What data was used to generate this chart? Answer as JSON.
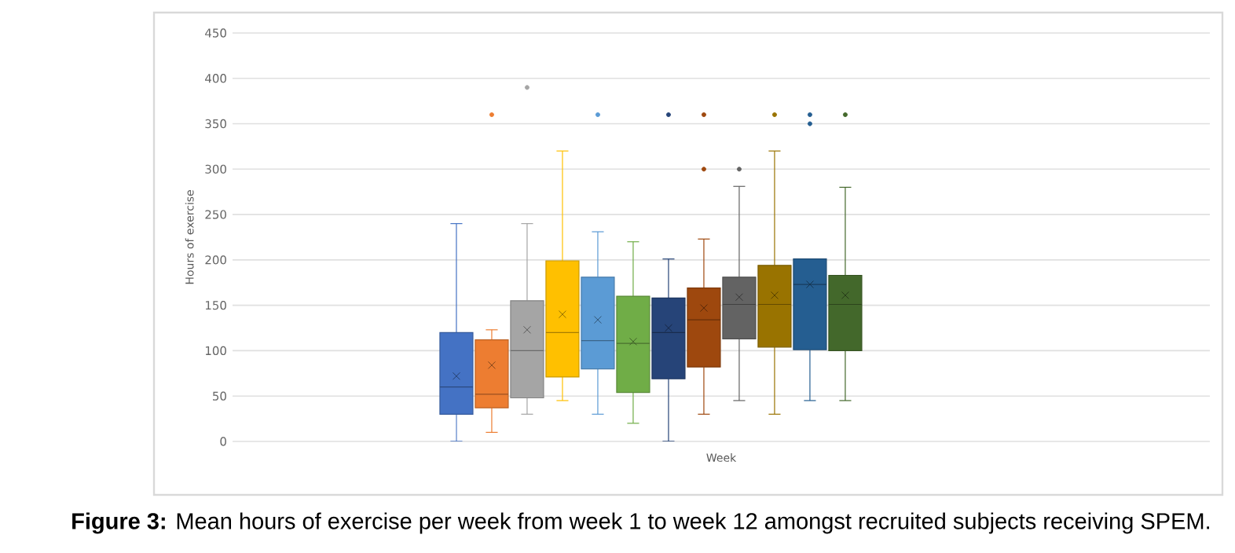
{
  "chart_data": {
    "type": "box",
    "categories": [
      null
    ],
    "xlabel": "Week",
    "ylabel": "Hours of exercise",
    "ylim": [
      0,
      450
    ],
    "yticks": [
      0,
      50,
      100,
      150,
      200,
      250,
      300,
      350,
      400,
      450
    ],
    "grid": "y",
    "annotations": [
      "**Figure 3:** Mean hours of exercise per week from week 1 to week 12 amongst recruited subjects receiving SPEM."
    ],
    "series": [
      {
        "color": "#4472c4",
        "boxes": [
          {
            "low": 0,
            "q1": 30,
            "median": 60,
            "q3": 120,
            "high": 240,
            "mean": 72
          }
        ]
      },
      {
        "color": "#ed7d31",
        "boxes": [
          {
            "low": 10,
            "q1": 37,
            "median": 52,
            "q3": 112,
            "high": 123,
            "mean": 84,
            "outliers": [
              360
            ]
          }
        ]
      },
      {
        "color": "#a5a5a5",
        "boxes": [
          {
            "low": 30,
            "q1": 48,
            "median": 100,
            "q3": 155,
            "high": 240,
            "mean": 123,
            "outliers": [
              390
            ]
          }
        ]
      },
      {
        "color": "#ffc000",
        "boxes": [
          {
            "low": 45,
            "q1": 71,
            "median": 120,
            "q3": 199,
            "high": 320,
            "mean": 140
          }
        ]
      },
      {
        "color": "#5b9bd5",
        "boxes": [
          {
            "low": 30,
            "q1": 80,
            "median": 111,
            "q3": 181,
            "high": 231,
            "mean": 134,
            "outliers": [
              360
            ]
          }
        ]
      },
      {
        "color": "#70ad47",
        "boxes": [
          {
            "low": 20,
            "q1": 54,
            "median": 108,
            "q3": 160,
            "high": 220,
            "mean": 110
          }
        ]
      },
      {
        "color": "#264478",
        "boxes": [
          {
            "low": 0,
            "q1": 69,
            "median": 120,
            "q3": 158,
            "high": 201,
            "mean": 125,
            "outliers": [
              360
            ]
          }
        ]
      },
      {
        "color": "#9e480e",
        "boxes": [
          {
            "low": 30,
            "q1": 82,
            "median": 134,
            "q3": 169,
            "high": 223,
            "mean": 147,
            "outliers": [
              300,
              360
            ]
          }
        ]
      },
      {
        "color": "#636363",
        "boxes": [
          {
            "low": 45,
            "q1": 113,
            "median": 151,
            "q3": 181,
            "high": 281,
            "mean": 159,
            "outliers": [
              300
            ]
          }
        ]
      },
      {
        "color": "#997300",
        "boxes": [
          {
            "low": 30,
            "q1": 104,
            "median": 151,
            "q3": 194,
            "high": 320,
            "mean": 161,
            "outliers": [
              360
            ]
          }
        ]
      },
      {
        "color": "#255e91",
        "boxes": [
          {
            "low": 45,
            "q1": 101,
            "median": 173,
            "q3": 201,
            "high": 201,
            "mean": 173,
            "outliers": [
              350,
              360
            ]
          }
        ]
      },
      {
        "color": "#43682b",
        "boxes": [
          {
            "low": 45,
            "q1": 100,
            "median": 151,
            "q3": 183,
            "high": 280,
            "mean": 161,
            "outliers": [
              360
            ]
          }
        ]
      }
    ]
  }
}
